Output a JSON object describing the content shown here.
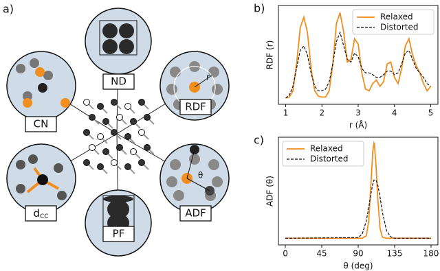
{
  "diagram": {
    "panel_label": "a)",
    "nodes": [
      {
        "label": "ND"
      },
      {
        "label": "RDF"
      },
      {
        "label": "CN"
      },
      {
        "label": "ADF"
      },
      {
        "label": "d",
        "sub": "CC"
      },
      {
        "label": "PF"
      }
    ],
    "rdf_symbol": "r",
    "adf_symbol": "θ"
  },
  "chart_data": [
    {
      "type": "line",
      "panel_label": "b)",
      "xlabel": "r (Å)",
      "ylabel": "RDF (r)",
      "x": [
        1.0,
        1.1,
        1.2,
        1.3,
        1.4,
        1.5,
        1.6,
        1.7,
        1.8,
        1.9,
        2.0,
        2.1,
        2.2,
        2.3,
        2.4,
        2.5,
        2.6,
        2.7,
        2.8,
        2.9,
        3.0,
        3.1,
        3.2,
        3.3,
        3.4,
        3.5,
        3.6,
        3.7,
        3.8,
        3.9,
        4.0,
        4.1,
        4.2,
        4.3,
        4.4,
        4.5,
        4.6,
        4.7,
        4.8,
        4.9,
        5.0
      ],
      "series": [
        {
          "name": "Relaxed",
          "color": "#f28e1e",
          "linestyle": "solid",
          "values": [
            0.02,
            0.03,
            0.1,
            0.4,
            0.8,
            0.92,
            0.75,
            0.35,
            0.1,
            0.04,
            0.03,
            0.03,
            0.1,
            0.4,
            0.85,
            0.97,
            0.75,
            0.42,
            0.45,
            0.68,
            0.62,
            0.3,
            0.12,
            0.1,
            0.18,
            0.22,
            0.15,
            0.2,
            0.4,
            0.42,
            0.25,
            0.18,
            0.35,
            0.6,
            0.68,
            0.5,
            0.38,
            0.3,
            0.18,
            0.1,
            0.15
          ]
        },
        {
          "name": "Distorted",
          "color": "#111111",
          "linestyle": "dashed",
          "values": [
            0.02,
            0.05,
            0.15,
            0.35,
            0.55,
            0.6,
            0.5,
            0.3,
            0.15,
            0.1,
            0.1,
            0.12,
            0.2,
            0.4,
            0.65,
            0.75,
            0.6,
            0.45,
            0.42,
            0.52,
            0.48,
            0.35,
            0.3,
            0.3,
            0.28,
            0.25,
            0.25,
            0.28,
            0.32,
            0.32,
            0.28,
            0.3,
            0.4,
            0.52,
            0.55,
            0.45,
            0.35,
            0.3,
            0.25,
            0.18,
            0.15
          ]
        }
      ],
      "xlim": [
        0.8,
        5.2
      ],
      "ylim": [
        -0.05,
        1.05
      ],
      "xticks": [
        1,
        2,
        3,
        4,
        5
      ],
      "legend": "upper right"
    },
    {
      "type": "line",
      "panel_label": "c)",
      "xlabel": "θ (deg)",
      "ylabel": "ADF (θ)",
      "x": [
        0,
        90,
        95,
        100,
        103,
        106,
        108,
        109.5,
        110,
        112,
        114,
        117,
        120,
        125,
        130,
        135,
        180
      ],
      "series": [
        {
          "name": "Relaxed",
          "color": "#f28e1e",
          "linestyle": "solid",
          "values": [
            0,
            0,
            0,
            0.025,
            0.18,
            0.61,
            0.91,
            1,
            0.99,
            0.77,
            0.44,
            0.1,
            0.011,
            0,
            0,
            0,
            0
          ]
        },
        {
          "name": "Distorted",
          "color": "#111111",
          "linestyle": "dashed",
          "values": [
            0,
            0.007,
            0.045,
            0.18,
            0.32,
            0.48,
            0.57,
            0.61,
            0.61,
            0.61,
            0.57,
            0.43,
            0.27,
            0.08,
            0.016,
            0,
            0
          ]
        }
      ],
      "xlim": [
        -8.5,
        188.5
      ],
      "ylim": [
        -0.07,
        1.06
      ],
      "xticks": [
        0,
        45,
        90,
        135,
        180
      ],
      "legend": "upper left"
    }
  ]
}
